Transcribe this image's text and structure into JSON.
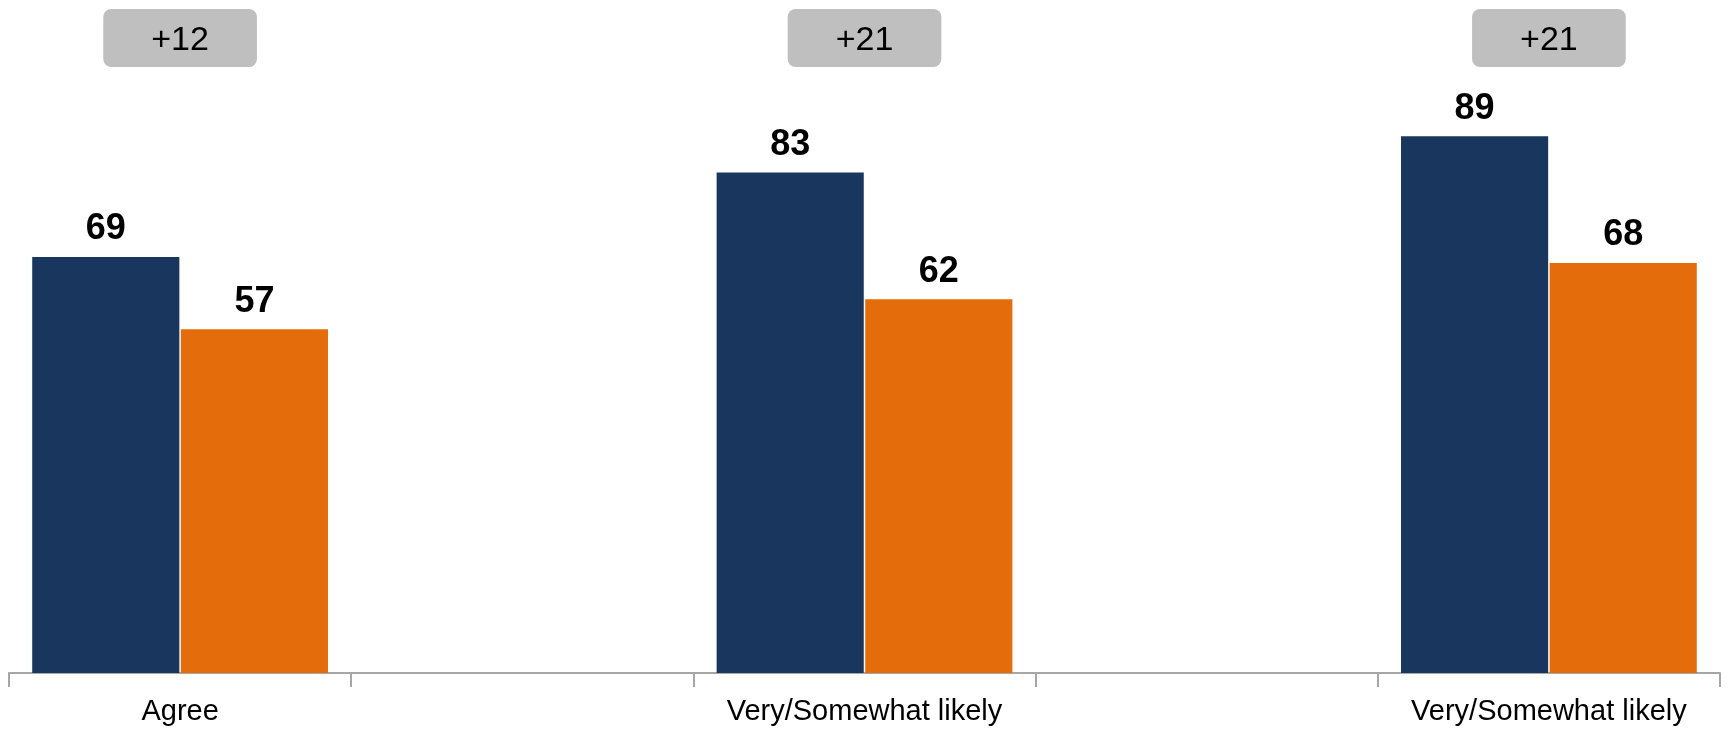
{
  "chart_data": {
    "type": "bar",
    "categories": [
      "Agree",
      null,
      "Very/Somewhat likely",
      null,
      "Very/Somewhat likely"
    ],
    "series": [
      {
        "color": "#19375e",
        "values": [
          69,
          null,
          83,
          null,
          89
        ]
      },
      {
        "color": "#e46c0a",
        "values": [
          57,
          null,
          62,
          null,
          68
        ]
      }
    ],
    "data_labels": true,
    "annotations": [
      "+12",
      "+21",
      "+21"
    ]
  }
}
